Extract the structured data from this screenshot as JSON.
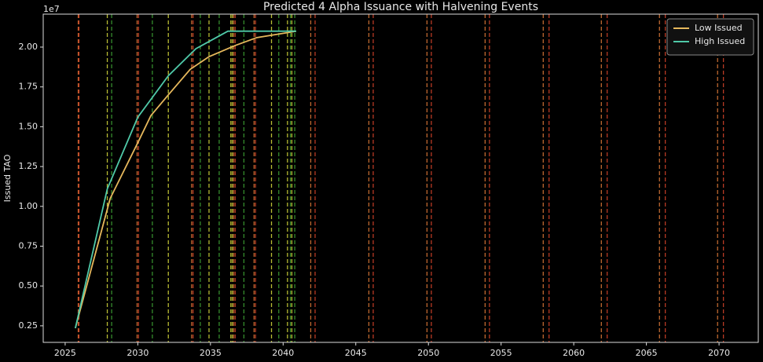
{
  "chart_data": {
    "type": "line",
    "title": "Predicted 4 Alpha Issuance with Halvening Events",
    "y_label": "Issued TAO",
    "y_offset_text": "1e7",
    "series": [
      {
        "name": "Low Issued",
        "color": "#e6b85c",
        "x": [
          2025.7,
          2028.1,
          2030.0,
          2030.9,
          2032.1,
          2033.6,
          2034.9,
          2036.7,
          2038.2,
          2040.9
        ],
        "values": [
          0.235,
          1.05,
          1.4,
          1.57,
          1.7,
          1.86,
          1.94,
          2.01,
          2.06,
          2.1
        ]
      },
      {
        "name": "High Issued",
        "color": "#4fc9a8",
        "x": [
          2025.7,
          2027.9,
          2030.0,
          2032.1,
          2034.0,
          2036.2,
          2040.9
        ],
        "values": [
          0.235,
          1.11,
          1.56,
          1.82,
          1.99,
          2.1,
          2.1
        ]
      }
    ],
    "vlines": [
      {
        "color": "#e07b39",
        "x": [
          2025.9,
          2029.95,
          2033.7,
          2036.6,
          2038.0,
          2041.9,
          2045.9,
          2049.9,
          2053.9,
          2057.9,
          2061.9,
          2065.9,
          2069.9
        ]
      },
      {
        "color": "#d9452b",
        "x": [
          2025.95,
          2030.05,
          2033.8,
          2036.7,
          2038.1,
          2042.2,
          2046.2,
          2050.2,
          2054.2,
          2058.3,
          2062.3,
          2066.3,
          2070.3
        ]
      },
      {
        "color": "#d8dc3c",
        "x": [
          2027.9,
          2032.1,
          2034.9,
          2036.4,
          2036.5,
          2039.2,
          2040.3,
          2040.6
        ]
      },
      {
        "color": "#3fa535",
        "x": [
          2028.2,
          2031.0,
          2034.3,
          2035.6,
          2037.3,
          2039.7,
          2040.5,
          2040.8
        ]
      }
    ],
    "xlim": [
      2023.49,
      2072.7
    ],
    "xticks": [
      2025,
      2030,
      2035,
      2040,
      2045,
      2050,
      2055,
      2060,
      2065,
      2070
    ],
    "ylim": [
      0.146,
      2.207
    ],
    "yticks": [
      0.25,
      {
        "value": 0.5,
        "label": "0.50"
      },
      0.75,
      {
        "value": 1,
        "label": "1.00"
      },
      1.25,
      {
        "value": 1.5,
        "label": "1.50"
      },
      1.75,
      {
        "value": 2,
        "label": "2.00"
      }
    ],
    "legend": "upper right"
  }
}
